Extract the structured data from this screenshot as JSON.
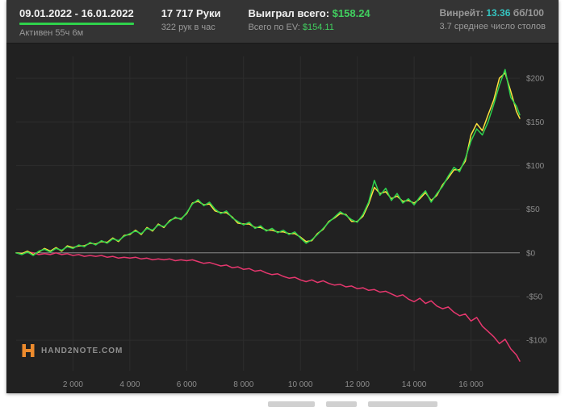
{
  "header": {
    "date_range": "09.01.2022 - 16.01.2022",
    "active_time": "Активен 55ч 6м",
    "hands": "17 717 Руки",
    "hands_per_hour": "322 рук в час",
    "won_label": "Выиграл всего: ",
    "won_value": "$158.24",
    "ev_label": "Всего по EV: ",
    "ev_value": "$154.11",
    "winrate_label": "Винрейт: ",
    "winrate_value": "13.36",
    "winrate_unit": " бб/100",
    "tables_avg": "3.7 среднее число столов"
  },
  "logo": {
    "text": "HAND2NOTE.COM"
  },
  "colors": {
    "accent_green": "#2fd24b",
    "line_winnings": "#2ed24e",
    "line_ev": "#ffe23e",
    "line_red": "#e6376e",
    "grid": "#2d2d2d",
    "zero_line": "#8a8a8a",
    "tick_text": "#8c8c8c",
    "logo_orange": "#ed8b2d"
  },
  "chart_data": {
    "type": "line",
    "title": "",
    "xlabel": "",
    "ylabel": "",
    "xlim": [
      0,
      17717
    ],
    "ylim": [
      -135,
      225
    ],
    "grid": true,
    "legend": "none",
    "x_ticks": [
      2000,
      4000,
      6000,
      8000,
      10000,
      12000,
      14000,
      16000
    ],
    "x_tick_labels": [
      "2 000",
      "4 000",
      "6 000",
      "8 000",
      "10 000",
      "12 000",
      "14 000",
      "16 000"
    ],
    "y_ticks": [
      -100,
      -50,
      0,
      50,
      100,
      150,
      200
    ],
    "y_tick_labels": [
      "-$100",
      "-$50",
      "$0",
      "$50",
      "$100",
      "$150",
      "$200"
    ],
    "x": [
      0,
      200,
      400,
      600,
      800,
      1000,
      1200,
      1400,
      1600,
      1800,
      2000,
      2200,
      2400,
      2600,
      2800,
      3000,
      3200,
      3400,
      3600,
      3800,
      4000,
      4200,
      4400,
      4600,
      4800,
      5000,
      5200,
      5400,
      5600,
      5800,
      6000,
      6200,
      6400,
      6600,
      6800,
      7000,
      7200,
      7400,
      7600,
      7800,
      8000,
      8200,
      8400,
      8600,
      8800,
      9000,
      9200,
      9400,
      9600,
      9800,
      10000,
      10200,
      10400,
      10600,
      10800,
      11000,
      11200,
      11400,
      11600,
      11800,
      12000,
      12200,
      12400,
      12600,
      12800,
      13000,
      13200,
      13400,
      13600,
      13800,
      14000,
      14200,
      14400,
      14600,
      14800,
      15000,
      15200,
      15400,
      15600,
      15800,
      16000,
      16200,
      16400,
      16600,
      16800,
      17000,
      17200,
      17400,
      17600,
      17717
    ],
    "series": [
      {
        "name": "redline",
        "color": "#e6376e",
        "values": [
          0,
          -1,
          1,
          0,
          -2,
          -1,
          -2,
          0,
          -2,
          -1,
          -3,
          -2,
          -4,
          -3,
          -4,
          -3,
          -5,
          -4,
          -6,
          -5,
          -6,
          -5,
          -7,
          -6,
          -8,
          -7,
          -8,
          -7,
          -9,
          -8,
          -9,
          -8,
          -10,
          -12,
          -11,
          -13,
          -15,
          -14,
          -17,
          -16,
          -19,
          -18,
          -21,
          -20,
          -23,
          -25,
          -24,
          -27,
          -29,
          -28,
          -31,
          -33,
          -31,
          -34,
          -32,
          -35,
          -37,
          -36,
          -39,
          -38,
          -41,
          -40,
          -43,
          -42,
          -45,
          -44,
          -47,
          -50,
          -48,
          -53,
          -56,
          -52,
          -58,
          -55,
          -61,
          -64,
          -62,
          -68,
          -72,
          -70,
          -78,
          -74,
          -84,
          -90,
          -96,
          -104,
          -99,
          -110,
          -117,
          -124
        ]
      },
      {
        "name": "ev",
        "color": "#ffe23e",
        "values": [
          0,
          -1,
          2,
          -2,
          1,
          5,
          2,
          6,
          2,
          8,
          6,
          8,
          8,
          11,
          10,
          13,
          12,
          17,
          13,
          20,
          21,
          26,
          21,
          29,
          25,
          33,
          29,
          37,
          40,
          39,
          45,
          57,
          59,
          55,
          56,
          48,
          46,
          46,
          41,
          34,
          33,
          33,
          29,
          29,
          26,
          26,
          24,
          24,
          22,
          22,
          18,
          13,
          14,
          22,
          27,
          36,
          40,
          45,
          44,
          36,
          36,
          42,
          56,
          75,
          68,
          70,
          62,
          65,
          59,
          60,
          57,
          62,
          69,
          60,
          66,
          78,
          86,
          95,
          95,
          105,
          135,
          148,
          140,
          158,
          175,
          200,
          206,
          185,
          162,
          154
        ]
      },
      {
        "name": "winnings",
        "color": "#2ed24e",
        "values": [
          0,
          -2,
          1,
          -3,
          2,
          4,
          1,
          5,
          3,
          7,
          5,
          9,
          7,
          12,
          9,
          14,
          11,
          16,
          14,
          19,
          22,
          25,
          22,
          28,
          26,
          32,
          30,
          36,
          41,
          38,
          46,
          56,
          61,
          54,
          58,
          50,
          45,
          48,
          40,
          36,
          32,
          35,
          28,
          31,
          25,
          28,
          23,
          26,
          21,
          24,
          17,
          11,
          15,
          21,
          28,
          35,
          41,
          47,
          43,
          38,
          35,
          44,
          58,
          83,
          66,
          74,
          60,
          68,
          57,
          62,
          55,
          64,
          71,
          58,
          68,
          76,
          88,
          98,
          93,
          108,
          128,
          142,
          135,
          150,
          170,
          192,
          210,
          178,
          168,
          158
        ]
      }
    ]
  }
}
